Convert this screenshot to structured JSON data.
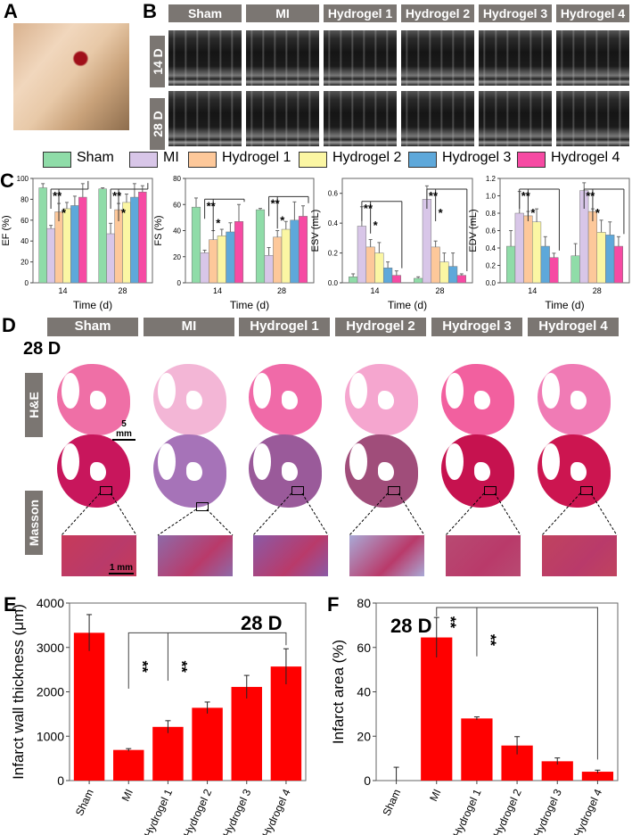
{
  "panels": {
    "A": "A",
    "B": "B",
    "C": "C",
    "D": "D",
    "E": "E",
    "F": "F"
  },
  "groups": [
    "Sham",
    "MI",
    "Hydrogel 1",
    "Hydrogel 2",
    "Hydrogel 3",
    "Hydrogel 4"
  ],
  "colors": {
    "Sham": "#8fdca8",
    "MI": "#d8c6e8",
    "Hydrogel 1": "#fdc89a",
    "Hydrogel 2": "#fbf6a3",
    "Hydrogel 3": "#5ea8da",
    "Hydrogel 4": "#f64aa3",
    "bars_EF": "#ff0000",
    "label_box": "#7b7672"
  },
  "panel_b": {
    "rows": [
      "14 D",
      "28 D"
    ]
  },
  "panel_d": {
    "timepoint": "28 D",
    "rows": [
      "H&E",
      "Masson"
    ],
    "scale_whole": "5 mm",
    "scale_inset": "1 mm"
  },
  "legend": [
    "Sham",
    "MI",
    "Hydrogel 1",
    "Hydrogel 2",
    "Hydrogel 3",
    "Hydrogel 4"
  ],
  "chart_data": [
    {
      "id": "EF",
      "type": "bar",
      "xlabel": "Time (d)",
      "ylabel": "EF (%)",
      "categories": [
        "14",
        "28"
      ],
      "ylim": [
        0,
        100
      ],
      "yticks": [
        0,
        20,
        40,
        60,
        80,
        100
      ],
      "series": [
        {
          "name": "Sham",
          "values": [
            91,
            90
          ],
          "errors": [
            4,
            1
          ]
        },
        {
          "name": "MI",
          "values": [
            52,
            47
          ],
          "errors": [
            3,
            10
          ]
        },
        {
          "name": "Hydrogel 1",
          "values": [
            68,
            70
          ],
          "errors": [
            8,
            6
          ]
        },
        {
          "name": "Hydrogel 2",
          "values": [
            71,
            77
          ],
          "errors": [
            6,
            8
          ]
        },
        {
          "name": "Hydrogel 3",
          "values": [
            74,
            82
          ],
          "errors": [
            9,
            13
          ]
        },
        {
          "name": "Hydrogel 4",
          "values": [
            82,
            87
          ],
          "errors": [
            13,
            6
          ]
        }
      ],
      "annotations": [
        "**",
        "*"
      ]
    },
    {
      "id": "FS",
      "type": "bar",
      "xlabel": "Time (d)",
      "ylabel": "FS (%)",
      "categories": [
        "14",
        "28"
      ],
      "ylim": [
        0,
        80
      ],
      "yticks": [
        0,
        20,
        40,
        60,
        80
      ],
      "series": [
        {
          "name": "Sham",
          "values": [
            58,
            56
          ],
          "errors": [
            7,
            1
          ]
        },
        {
          "name": "MI",
          "values": [
            23,
            21
          ],
          "errors": [
            2,
            6
          ]
        },
        {
          "name": "Hydrogel 1",
          "values": [
            33,
            35
          ],
          "errors": [
            7,
            5
          ]
        },
        {
          "name": "Hydrogel 2",
          "values": [
            36,
            41
          ],
          "errors": [
            5,
            6
          ]
        },
        {
          "name": "Hydrogel 3",
          "values": [
            39,
            48
          ],
          "errors": [
            7,
            14
          ]
        },
        {
          "name": "Hydrogel 4",
          "values": [
            47,
            51
          ],
          "errors": [
            13,
            8
          ]
        }
      ],
      "annotations": [
        "**",
        "*"
      ]
    },
    {
      "id": "ESV",
      "type": "bar",
      "xlabel": "Time (d)",
      "ylabel": "ESV (mL)",
      "categories": [
        "14",
        "28"
      ],
      "ylim": [
        0,
        0.7
      ],
      "yticks": [
        0.0,
        0.2,
        0.4,
        0.6
      ],
      "series": [
        {
          "name": "Sham",
          "values": [
            0.04,
            0.03
          ],
          "errors": [
            0.02,
            0.01
          ]
        },
        {
          "name": "MI",
          "values": [
            0.38,
            0.56
          ],
          "errors": [
            0.13,
            0.09
          ]
        },
        {
          "name": "Hydrogel 1",
          "values": [
            0.24,
            0.24
          ],
          "errors": [
            0.05,
            0.04
          ]
        },
        {
          "name": "Hydrogel 2",
          "values": [
            0.2,
            0.14
          ],
          "errors": [
            0.07,
            0.06
          ]
        },
        {
          "name": "Hydrogel 3",
          "values": [
            0.1,
            0.11
          ],
          "errors": [
            0.04,
            0.09
          ]
        },
        {
          "name": "Hydrogel 4",
          "values": [
            0.05,
            0.05
          ],
          "errors": [
            0.03,
            0.01
          ]
        }
      ],
      "annotations": [
        "**",
        "*"
      ]
    },
    {
      "id": "EDV",
      "type": "bar",
      "xlabel": "Time (d)",
      "ylabel": "EDV (mL)",
      "categories": [
        "14",
        "28"
      ],
      "ylim": [
        0,
        1.2
      ],
      "yticks": [
        0.0,
        0.2,
        0.4,
        0.6,
        0.8,
        1.0,
        1.2
      ],
      "series": [
        {
          "name": "Sham",
          "values": [
            0.42,
            0.31
          ],
          "errors": [
            0.18,
            0.14
          ]
        },
        {
          "name": "MI",
          "values": [
            0.8,
            1.06
          ],
          "errors": [
            0.25,
            0.09
          ]
        },
        {
          "name": "Hydrogel 1",
          "values": [
            0.77,
            0.82
          ],
          "errors": [
            0.05,
            0.03
          ]
        },
        {
          "name": "Hydrogel 2",
          "values": [
            0.7,
            0.58
          ],
          "errors": [
            0.15,
            0.14
          ]
        },
        {
          "name": "Hydrogel 3",
          "values": [
            0.42,
            0.55
          ],
          "errors": [
            0.11,
            0.15
          ]
        },
        {
          "name": "Hydrogel 4",
          "values": [
            0.29,
            0.42
          ],
          "errors": [
            0.05,
            0.11
          ]
        }
      ],
      "annotations": [
        "**",
        "*"
      ]
    },
    {
      "id": "E",
      "type": "bar",
      "title": "28 D",
      "xlabel": "",
      "ylabel": "Infarct wall thickness (μm)",
      "categories": [
        "Sham",
        "MI",
        "Hydrogel 1",
        "Hydrogel 2",
        "Hydrogel 3",
        "Hydrogel 4"
      ],
      "values": [
        3330,
        690,
        1210,
        1640,
        2110,
        2570
      ],
      "errors": [
        410,
        30,
        140,
        130,
        260,
        400
      ],
      "ylim": [
        0,
        4000
      ],
      "yticks": [
        0,
        1000,
        2000,
        3000,
        4000
      ],
      "annotations": [
        "**",
        "**"
      ]
    },
    {
      "id": "F",
      "type": "bar",
      "title": "28 D",
      "xlabel": "",
      "ylabel": "Infarct area (%)",
      "categories": [
        "Sham",
        "MI",
        "Hydrogel 1",
        "Hydrogel 2",
        "Hydrogel 3",
        "Hydrogel 4"
      ],
      "values": [
        0,
        64.5,
        28,
        15.8,
        8.7,
        4
      ],
      "errors": [
        6,
        9,
        0.7,
        4,
        1.5,
        0.7
      ],
      "ylim": [
        0,
        80
      ],
      "yticks": [
        0,
        20,
        40,
        60,
        80
      ],
      "annotations": [
        "**",
        "**"
      ]
    }
  ]
}
